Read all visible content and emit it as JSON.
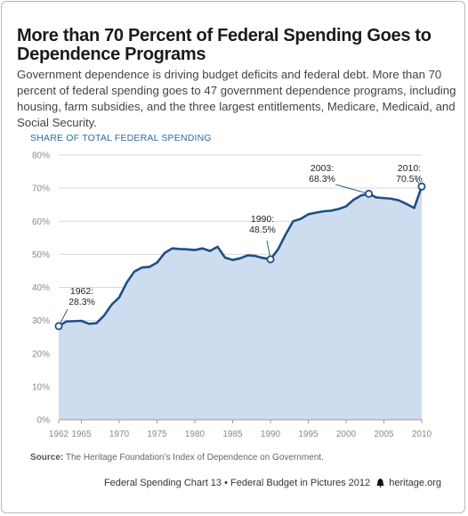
{
  "header": {
    "title": "More than 70 Percent of Federal Spending Goes to Dependence Programs",
    "subtitle": "Government dependence is driving budget deficits and federal debt. More than 70 percent of federal spending goes to 47 government dependence programs, including housing, farm subsidies, and the three largest entitlements, Medicare, Medicaid, and Social Security."
  },
  "chart_data": {
    "type": "area",
    "ylabel": "SHARE OF TOTAL FEDERAL SPENDING",
    "xlabel": "",
    "xlim": [
      1962,
      2010
    ],
    "ylim": [
      0,
      80
    ],
    "x_ticks": [
      "1962",
      "1965",
      "1970",
      "1975",
      "1980",
      "1985",
      "1990",
      "1995",
      "2000",
      "2005",
      "2010"
    ],
    "y_ticks": [
      "0%",
      "10%",
      "20%",
      "30%",
      "40%",
      "50%",
      "60%",
      "70%",
      "80%"
    ],
    "grid": true,
    "colors": {
      "line": "#1f4f86",
      "fill": "#cdddef",
      "grid": "#d9d9d9",
      "marker_fill": "#ffffff"
    },
    "x": [
      1962,
      1963,
      1964,
      1965,
      1966,
      1967,
      1968,
      1969,
      1970,
      1971,
      1972,
      1973,
      1974,
      1975,
      1976,
      1977,
      1978,
      1979,
      1980,
      1981,
      1982,
      1983,
      1984,
      1985,
      1986,
      1987,
      1988,
      1989,
      1990,
      1991,
      1992,
      1993,
      1994,
      1995,
      1996,
      1997,
      1998,
      1999,
      2000,
      2001,
      2002,
      2003,
      2004,
      2005,
      2006,
      2007,
      2008,
      2009,
      2010
    ],
    "values": [
      28.3,
      29.7,
      29.8,
      29.9,
      29.0,
      29.2,
      31.5,
      34.8,
      37.0,
      41.5,
      44.8,
      46.0,
      46.2,
      47.5,
      50.4,
      51.8,
      51.6,
      51.5,
      51.3,
      51.8,
      51.0,
      52.3,
      49.0,
      48.3,
      48.8,
      49.7,
      49.5,
      48.9,
      48.5,
      51.5,
      56.0,
      60.0,
      60.7,
      62.1,
      62.6,
      63.0,
      63.2,
      63.7,
      64.5,
      66.5,
      67.8,
      68.3,
      67.2,
      67.0,
      66.8,
      66.3,
      65.2,
      64.0,
      70.5
    ],
    "annotations": [
      {
        "year": "1962:",
        "value": "28.3%",
        "x": 1962,
        "y": 28.3
      },
      {
        "year": "1990:",
        "value": "48.5%",
        "x": 1990,
        "y": 48.5
      },
      {
        "year": "2003:",
        "value": "68.3%",
        "x": 2003,
        "y": 68.3
      },
      {
        "year": "2010:",
        "value": "70.5%",
        "x": 2010,
        "y": 70.5
      }
    ]
  },
  "source": {
    "label": "Source:",
    "text": "The Heritage Foundation’s Index of Dependence on Government."
  },
  "footer": {
    "text": "Federal Spending Chart 13 • Federal Budget in Pictures 2012",
    "icon": "liberty-bell-icon",
    "site": "heritage.org"
  }
}
